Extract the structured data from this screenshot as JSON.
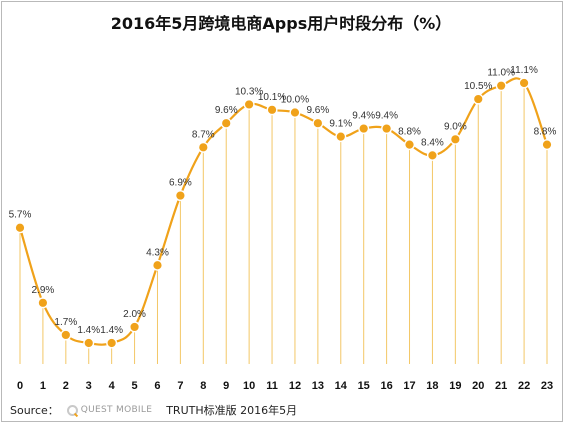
{
  "title": "2016年5月跨境电商Apps用户时段分布（%）",
  "footer": {
    "source_label": "Source：",
    "logo_text": "QUEST MOBILE",
    "note": "TRUTH标准版 2016年5月"
  },
  "colors": {
    "line": "#f0a21a",
    "point": "#f0a21a",
    "point_border": "#ffffff",
    "drop_line": "#f3c766",
    "label": "#333333"
  },
  "chart_data": {
    "type": "line",
    "categories": [
      "0",
      "1",
      "2",
      "3",
      "4",
      "5",
      "6",
      "7",
      "8",
      "9",
      "10",
      "11",
      "12",
      "13",
      "14",
      "15",
      "16",
      "17",
      "18",
      "19",
      "20",
      "21",
      "22",
      "23"
    ],
    "values": [
      5.7,
      2.9,
      1.7,
      1.4,
      1.4,
      2.0,
      4.3,
      6.9,
      8.7,
      9.6,
      10.3,
      10.1,
      10.0,
      9.6,
      9.1,
      9.4,
      9.4,
      8.8,
      8.4,
      9.0,
      10.5,
      11.0,
      11.1,
      8.8
    ],
    "data_labels": [
      "5.7%",
      "2.9%",
      "1.7%",
      "1.4%",
      "1.4%",
      "2.0%",
      "4.3%",
      "6.9%",
      "8.7%",
      "9.6%",
      "10.3%",
      "10.1%",
      "10.0%",
      "9.6%",
      "9.1%",
      "9.4%",
      "9.4%",
      "8.8%",
      "8.4%",
      "9.0%",
      "10.5%",
      "11.0%",
      "11.1%",
      "8.8%"
    ],
    "smooth": true,
    "grid": false,
    "legend": "none"
  }
}
